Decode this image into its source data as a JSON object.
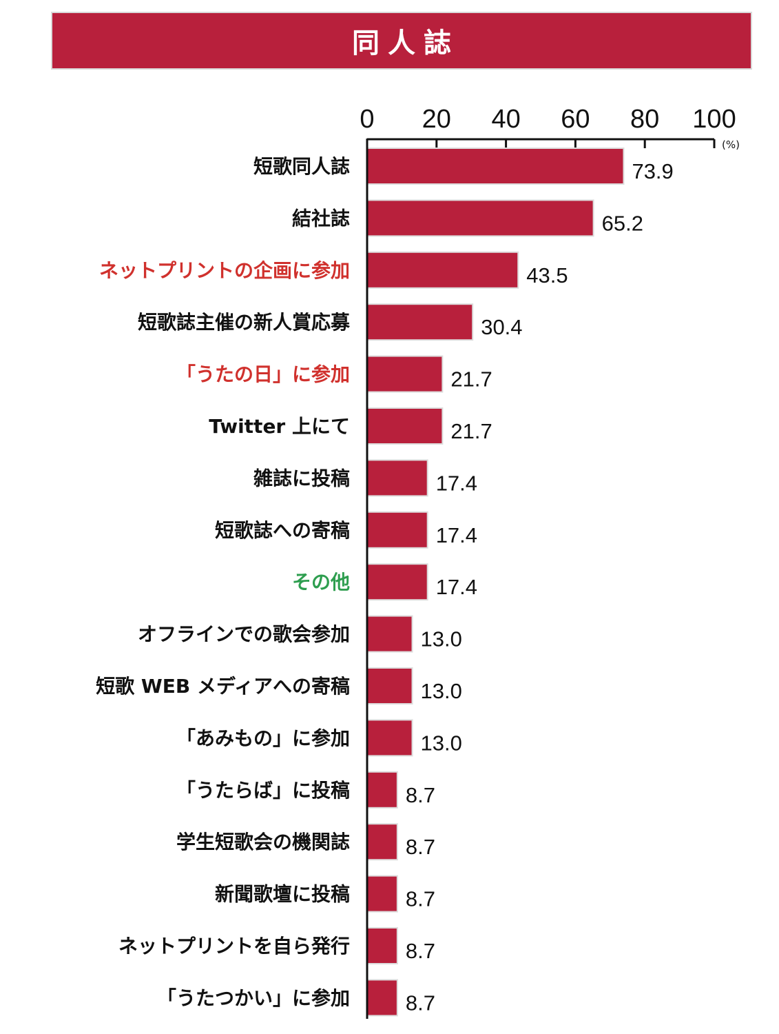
{
  "title": "同人誌",
  "colors": {
    "bar": "#b8203c",
    "bar_border": "#dcdcdc",
    "title_bg": "#b8203c",
    "label_default": "#111111",
    "label_red": "#d0312d",
    "label_green": "#2e9e4f"
  },
  "chart_data": {
    "type": "bar",
    "orientation": "horizontal",
    "unit": "(%)",
    "xlim": [
      0,
      100
    ],
    "xticks": [
      0,
      20,
      40,
      60,
      80,
      100
    ],
    "categories": [
      "短歌同人誌",
      "結社誌",
      "ネットプリントの企画に参加",
      "短歌誌主催の新人賞応募",
      "「うたの日」に参加",
      "Twitter 上にて",
      "雑誌に投稿",
      "短歌誌への寄稿",
      "その他",
      "オフラインでの歌会参加",
      "短歌 WEB メディアへの寄稿",
      "「あみもの」に参加",
      "「うたらば」に投稿",
      "学生短歌会の機関誌",
      "新聞歌壇に投稿",
      "ネットプリントを自ら発行",
      "「うたつかい」に参加"
    ],
    "values": [
      73.9,
      65.2,
      43.5,
      30.4,
      21.7,
      21.7,
      17.4,
      17.4,
      17.4,
      13.0,
      13.0,
      13.0,
      8.7,
      8.7,
      8.7,
      8.7,
      8.7
    ],
    "value_labels": [
      "73.9",
      "65.2",
      "43.5",
      "30.4",
      "21.7",
      "21.7",
      "17.4",
      "17.4",
      "17.4",
      "13.0",
      "13.0",
      "13.0",
      "8.7",
      "8.7",
      "8.7",
      "8.7",
      "8.7"
    ],
    "label_colors": [
      "default",
      "default",
      "red",
      "default",
      "red",
      "default",
      "default",
      "default",
      "green",
      "default",
      "default",
      "default",
      "default",
      "default",
      "default",
      "default",
      "default"
    ]
  }
}
